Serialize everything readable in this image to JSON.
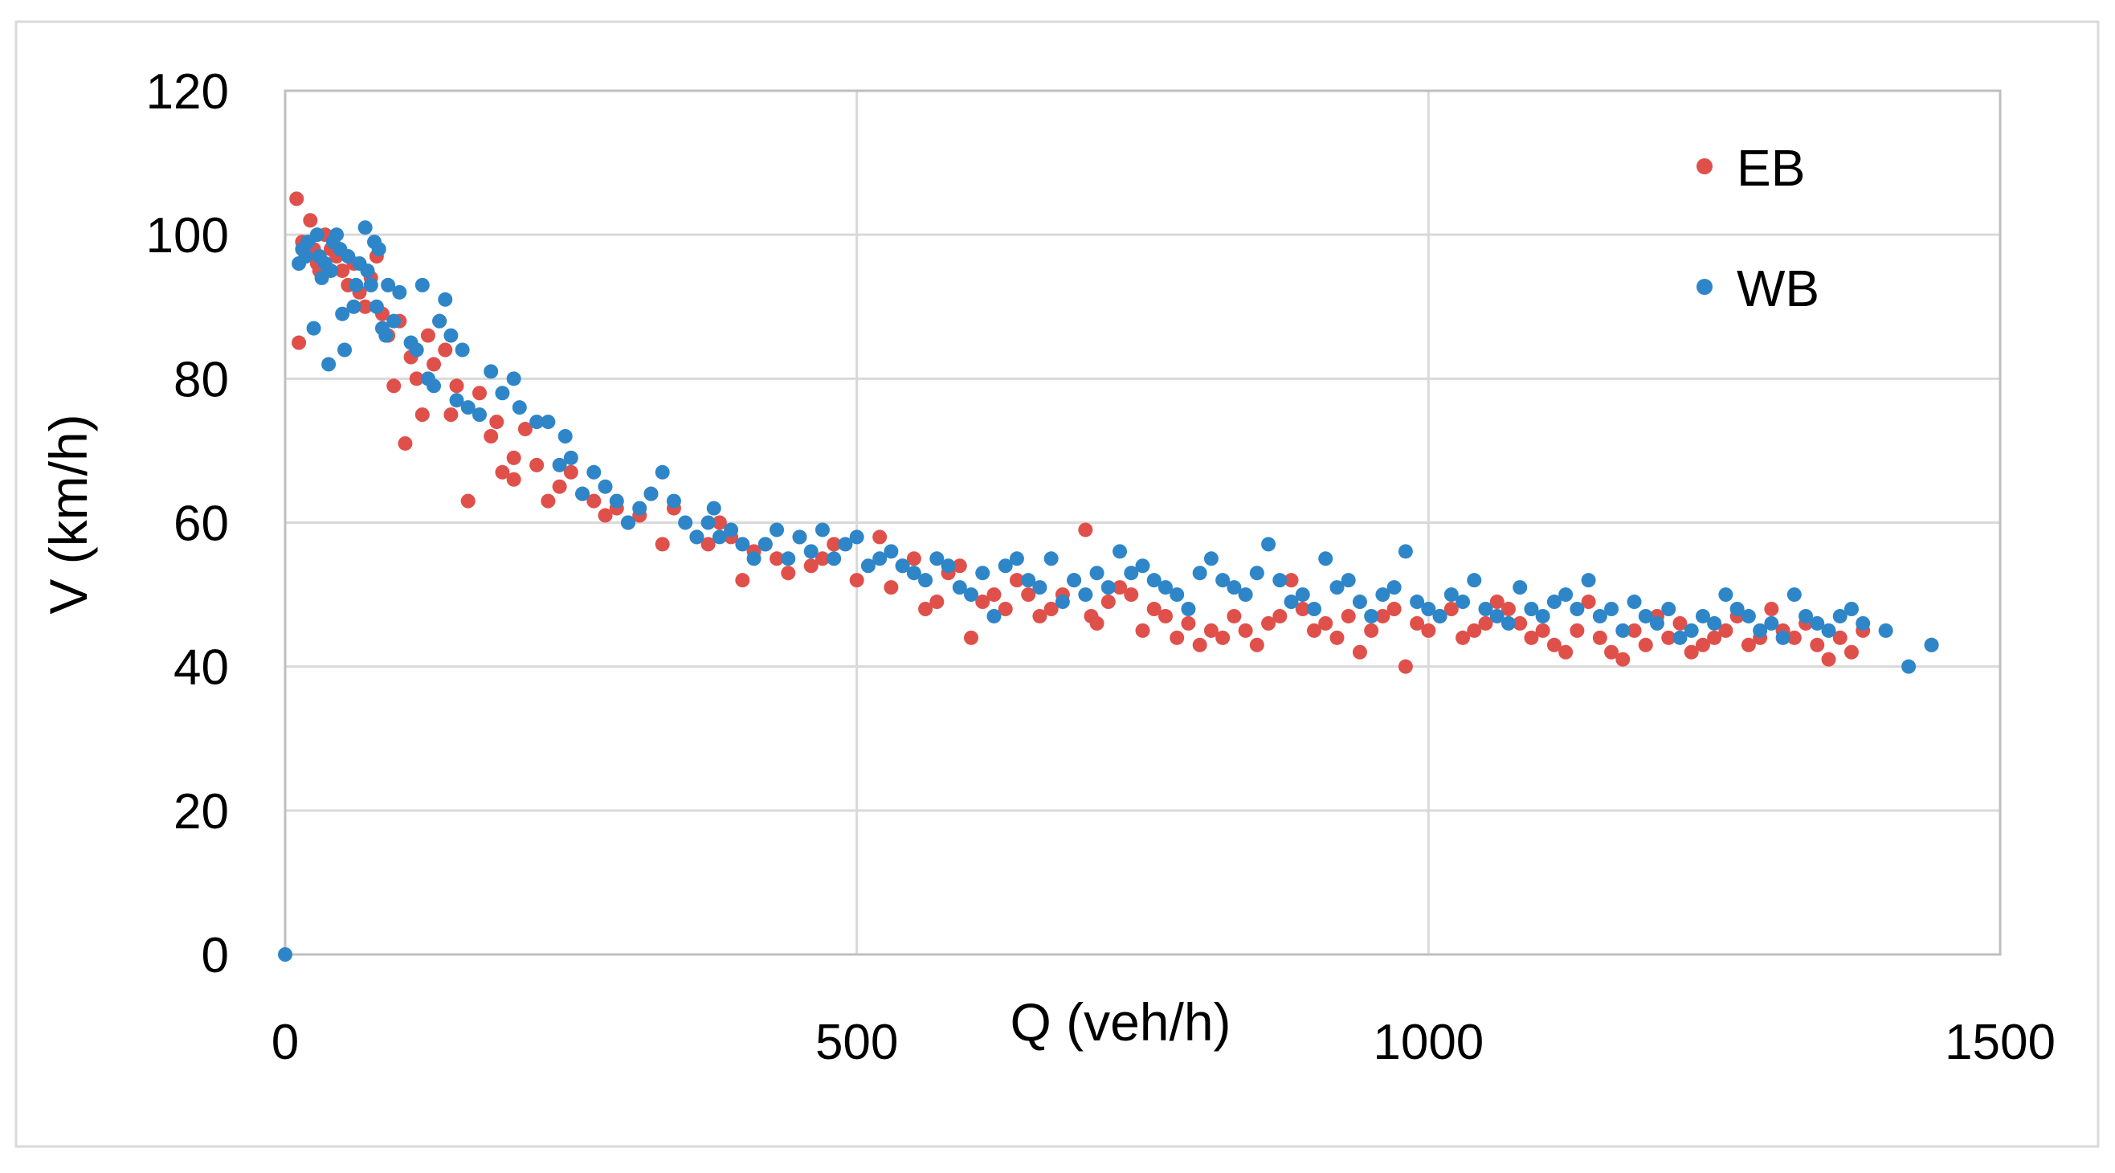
{
  "chart_data": {
    "type": "scatter",
    "title": "",
    "xlabel": "Q (veh/h)",
    "ylabel": "V (km/h)",
    "xlim": [
      0,
      1500
    ],
    "ylim": [
      0,
      120
    ],
    "xticks": [
      0,
      500,
      1000,
      1500
    ],
    "yticks": [
      0,
      20,
      40,
      60,
      80,
      100,
      120
    ],
    "xtick_labels": [
      "0",
      "500",
      "1000",
      "1500"
    ],
    "ytick_labels": [
      "0",
      "20",
      "40",
      "60",
      "80",
      "100",
      "120"
    ],
    "grid": true,
    "legend_position": "top-right",
    "series": [
      {
        "name": "EB",
        "color": "#E0504A",
        "points": [
          [
            10,
            105
          ],
          [
            12,
            85
          ],
          [
            15,
            99
          ],
          [
            18,
            97
          ],
          [
            22,
            102
          ],
          [
            25,
            98
          ],
          [
            28,
            96
          ],
          [
            30,
            95
          ],
          [
            35,
            100
          ],
          [
            40,
            98
          ],
          [
            45,
            97
          ],
          [
            50,
            95
          ],
          [
            55,
            93
          ],
          [
            60,
            96
          ],
          [
            65,
            92
          ],
          [
            70,
            90
          ],
          [
            75,
            94
          ],
          [
            80,
            97
          ],
          [
            85,
            89
          ],
          [
            90,
            86
          ],
          [
            95,
            79
          ],
          [
            100,
            88
          ],
          [
            105,
            71
          ],
          [
            110,
            83
          ],
          [
            115,
            80
          ],
          [
            120,
            75
          ],
          [
            125,
            86
          ],
          [
            130,
            82
          ],
          [
            135,
            88
          ],
          [
            140,
            84
          ],
          [
            145,
            75
          ],
          [
            150,
            79
          ],
          [
            160,
            63
          ],
          [
            170,
            78
          ],
          [
            180,
            72
          ],
          [
            185,
            74
          ],
          [
            190,
            67
          ],
          [
            200,
            66
          ],
          [
            200,
            69
          ],
          [
            210,
            73
          ],
          [
            220,
            68
          ],
          [
            230,
            63
          ],
          [
            240,
            65
          ],
          [
            250,
            67
          ],
          [
            260,
            64
          ],
          [
            270,
            63
          ],
          [
            280,
            61
          ],
          [
            290,
            62
          ],
          [
            300,
            60
          ],
          [
            310,
            61
          ],
          [
            320,
            64
          ],
          [
            330,
            57
          ],
          [
            340,
            62
          ],
          [
            360,
            58
          ],
          [
            370,
            57
          ],
          [
            380,
            60
          ],
          [
            390,
            58
          ],
          [
            400,
            52
          ],
          [
            410,
            56
          ],
          [
            420,
            57
          ],
          [
            430,
            55
          ],
          [
            440,
            53
          ],
          [
            450,
            58
          ],
          [
            460,
            54
          ],
          [
            470,
            55
          ],
          [
            480,
            57
          ],
          [
            500,
            52
          ],
          [
            520,
            58
          ],
          [
            530,
            51
          ],
          [
            540,
            54
          ],
          [
            550,
            55
          ],
          [
            560,
            48
          ],
          [
            570,
            49
          ],
          [
            580,
            53
          ],
          [
            590,
            54
          ],
          [
            600,
            44
          ],
          [
            610,
            49
          ],
          [
            620,
            50
          ],
          [
            630,
            48
          ],
          [
            640,
            52
          ],
          [
            650,
            50
          ],
          [
            660,
            47
          ],
          [
            670,
            48
          ],
          [
            680,
            50
          ],
          [
            690,
            52
          ],
          [
            700,
            59
          ],
          [
            705,
            47
          ],
          [
            710,
            46
          ],
          [
            720,
            49
          ],
          [
            730,
            51
          ],
          [
            740,
            50
          ],
          [
            750,
            45
          ],
          [
            760,
            48
          ],
          [
            770,
            47
          ],
          [
            780,
            44
          ],
          [
            790,
            46
          ],
          [
            800,
            43
          ],
          [
            810,
            45
          ],
          [
            820,
            44
          ],
          [
            830,
            47
          ],
          [
            840,
            45
          ],
          [
            850,
            43
          ],
          [
            860,
            46
          ],
          [
            870,
            47
          ],
          [
            880,
            52
          ],
          [
            890,
            48
          ],
          [
            900,
            45
          ],
          [
            910,
            46
          ],
          [
            920,
            44
          ],
          [
            930,
            47
          ],
          [
            940,
            42
          ],
          [
            950,
            45
          ],
          [
            960,
            47
          ],
          [
            970,
            48
          ],
          [
            980,
            40
          ],
          [
            990,
            46
          ],
          [
            1000,
            45
          ],
          [
            1010,
            47
          ],
          [
            1020,
            48
          ],
          [
            1030,
            44
          ],
          [
            1040,
            45
          ],
          [
            1050,
            46
          ],
          [
            1060,
            49
          ],
          [
            1070,
            48
          ],
          [
            1080,
            46
          ],
          [
            1090,
            44
          ],
          [
            1100,
            45
          ],
          [
            1110,
            43
          ],
          [
            1120,
            42
          ],
          [
            1130,
            45
          ],
          [
            1140,
            49
          ],
          [
            1150,
            44
          ],
          [
            1160,
            42
          ],
          [
            1170,
            41
          ],
          [
            1180,
            45
          ],
          [
            1190,
            43
          ],
          [
            1200,
            47
          ],
          [
            1210,
            44
          ],
          [
            1220,
            46
          ],
          [
            1230,
            42
          ],
          [
            1240,
            43
          ],
          [
            1250,
            44
          ],
          [
            1260,
            45
          ],
          [
            1270,
            47
          ],
          [
            1280,
            43
          ],
          [
            1290,
            44
          ],
          [
            1300,
            48
          ],
          [
            1310,
            45
          ],
          [
            1320,
            44
          ],
          [
            1330,
            46
          ],
          [
            1340,
            43
          ],
          [
            1350,
            41
          ],
          [
            1360,
            44
          ],
          [
            1370,
            42
          ],
          [
            1380,
            45
          ],
          [
            1440,
            43
          ]
        ]
      },
      {
        "name": "WB",
        "color": "#2E86C8",
        "points": [
          [
            0,
            0
          ],
          [
            12,
            96
          ],
          [
            15,
            98
          ],
          [
            18,
            97
          ],
          [
            20,
            99
          ],
          [
            25,
            87
          ],
          [
            28,
            100
          ],
          [
            30,
            97
          ],
          [
            32,
            94
          ],
          [
            35,
            96
          ],
          [
            38,
            82
          ],
          [
            40,
            95
          ],
          [
            42,
            99
          ],
          [
            45,
            100
          ],
          [
            48,
            98
          ],
          [
            50,
            89
          ],
          [
            52,
            84
          ],
          [
            55,
            97
          ],
          [
            60,
            90
          ],
          [
            62,
            93
          ],
          [
            65,
            96
          ],
          [
            70,
            101
          ],
          [
            72,
            95
          ],
          [
            75,
            93
          ],
          [
            78,
            99
          ],
          [
            80,
            90
          ],
          [
            82,
            98
          ],
          [
            85,
            87
          ],
          [
            88,
            86
          ],
          [
            90,
            93
          ],
          [
            95,
            88
          ],
          [
            100,
            92
          ],
          [
            110,
            85
          ],
          [
            115,
            84
          ],
          [
            120,
            93
          ],
          [
            125,
            80
          ],
          [
            130,
            79
          ],
          [
            135,
            88
          ],
          [
            140,
            91
          ],
          [
            145,
            86
          ],
          [
            150,
            77
          ],
          [
            155,
            84
          ],
          [
            160,
            76
          ],
          [
            170,
            75
          ],
          [
            180,
            81
          ],
          [
            190,
            78
          ],
          [
            200,
            80
          ],
          [
            205,
            76
          ],
          [
            220,
            74
          ],
          [
            230,
            74
          ],
          [
            240,
            68
          ],
          [
            245,
            72
          ],
          [
            250,
            69
          ],
          [
            260,
            64
          ],
          [
            270,
            67
          ],
          [
            280,
            65
          ],
          [
            290,
            63
          ],
          [
            300,
            60
          ],
          [
            310,
            62
          ],
          [
            320,
            64
          ],
          [
            330,
            67
          ],
          [
            340,
            63
          ],
          [
            350,
            60
          ],
          [
            360,
            58
          ],
          [
            370,
            60
          ],
          [
            375,
            62
          ],
          [
            380,
            58
          ],
          [
            390,
            59
          ],
          [
            400,
            57
          ],
          [
            410,
            55
          ],
          [
            420,
            57
          ],
          [
            430,
            59
          ],
          [
            440,
            55
          ],
          [
            450,
            58
          ],
          [
            460,
            56
          ],
          [
            470,
            59
          ],
          [
            480,
            55
          ],
          [
            490,
            57
          ],
          [
            500,
            58
          ],
          [
            510,
            54
          ],
          [
            520,
            55
          ],
          [
            530,
            56
          ],
          [
            540,
            54
          ],
          [
            550,
            53
          ],
          [
            560,
            52
          ],
          [
            570,
            55
          ],
          [
            580,
            54
          ],
          [
            590,
            51
          ],
          [
            600,
            50
          ],
          [
            610,
            53
          ],
          [
            620,
            47
          ],
          [
            630,
            54
          ],
          [
            640,
            55
          ],
          [
            650,
            52
          ],
          [
            660,
            51
          ],
          [
            670,
            55
          ],
          [
            680,
            49
          ],
          [
            690,
            52
          ],
          [
            700,
            50
          ],
          [
            710,
            53
          ],
          [
            720,
            51
          ],
          [
            730,
            56
          ],
          [
            740,
            53
          ],
          [
            750,
            54
          ],
          [
            760,
            52
          ],
          [
            770,
            51
          ],
          [
            780,
            50
          ],
          [
            790,
            48
          ],
          [
            800,
            53
          ],
          [
            810,
            55
          ],
          [
            820,
            52
          ],
          [
            830,
            51
          ],
          [
            840,
            50
          ],
          [
            850,
            53
          ],
          [
            860,
            57
          ],
          [
            870,
            52
          ],
          [
            880,
            49
          ],
          [
            890,
            50
          ],
          [
            900,
            48
          ],
          [
            910,
            55
          ],
          [
            920,
            51
          ],
          [
            930,
            52
          ],
          [
            940,
            49
          ],
          [
            950,
            47
          ],
          [
            960,
            50
          ],
          [
            970,
            51
          ],
          [
            980,
            56
          ],
          [
            990,
            49
          ],
          [
            1000,
            48
          ],
          [
            1010,
            47
          ],
          [
            1020,
            50
          ],
          [
            1030,
            49
          ],
          [
            1040,
            52
          ],
          [
            1050,
            48
          ],
          [
            1060,
            47
          ],
          [
            1070,
            46
          ],
          [
            1080,
            51
          ],
          [
            1090,
            48
          ],
          [
            1100,
            47
          ],
          [
            1110,
            49
          ],
          [
            1120,
            50
          ],
          [
            1130,
            48
          ],
          [
            1140,
            52
          ],
          [
            1150,
            47
          ],
          [
            1160,
            48
          ],
          [
            1170,
            45
          ],
          [
            1180,
            49
          ],
          [
            1190,
            47
          ],
          [
            1200,
            46
          ],
          [
            1210,
            48
          ],
          [
            1220,
            44
          ],
          [
            1230,
            45
          ],
          [
            1240,
            47
          ],
          [
            1250,
            46
          ],
          [
            1260,
            50
          ],
          [
            1270,
            48
          ],
          [
            1280,
            47
          ],
          [
            1290,
            45
          ],
          [
            1300,
            46
          ],
          [
            1310,
            44
          ],
          [
            1320,
            50
          ],
          [
            1330,
            47
          ],
          [
            1340,
            46
          ],
          [
            1350,
            45
          ],
          [
            1360,
            47
          ],
          [
            1370,
            48
          ],
          [
            1380,
            46
          ],
          [
            1400,
            45
          ],
          [
            1420,
            40
          ],
          [
            1440,
            43
          ]
        ]
      }
    ]
  }
}
